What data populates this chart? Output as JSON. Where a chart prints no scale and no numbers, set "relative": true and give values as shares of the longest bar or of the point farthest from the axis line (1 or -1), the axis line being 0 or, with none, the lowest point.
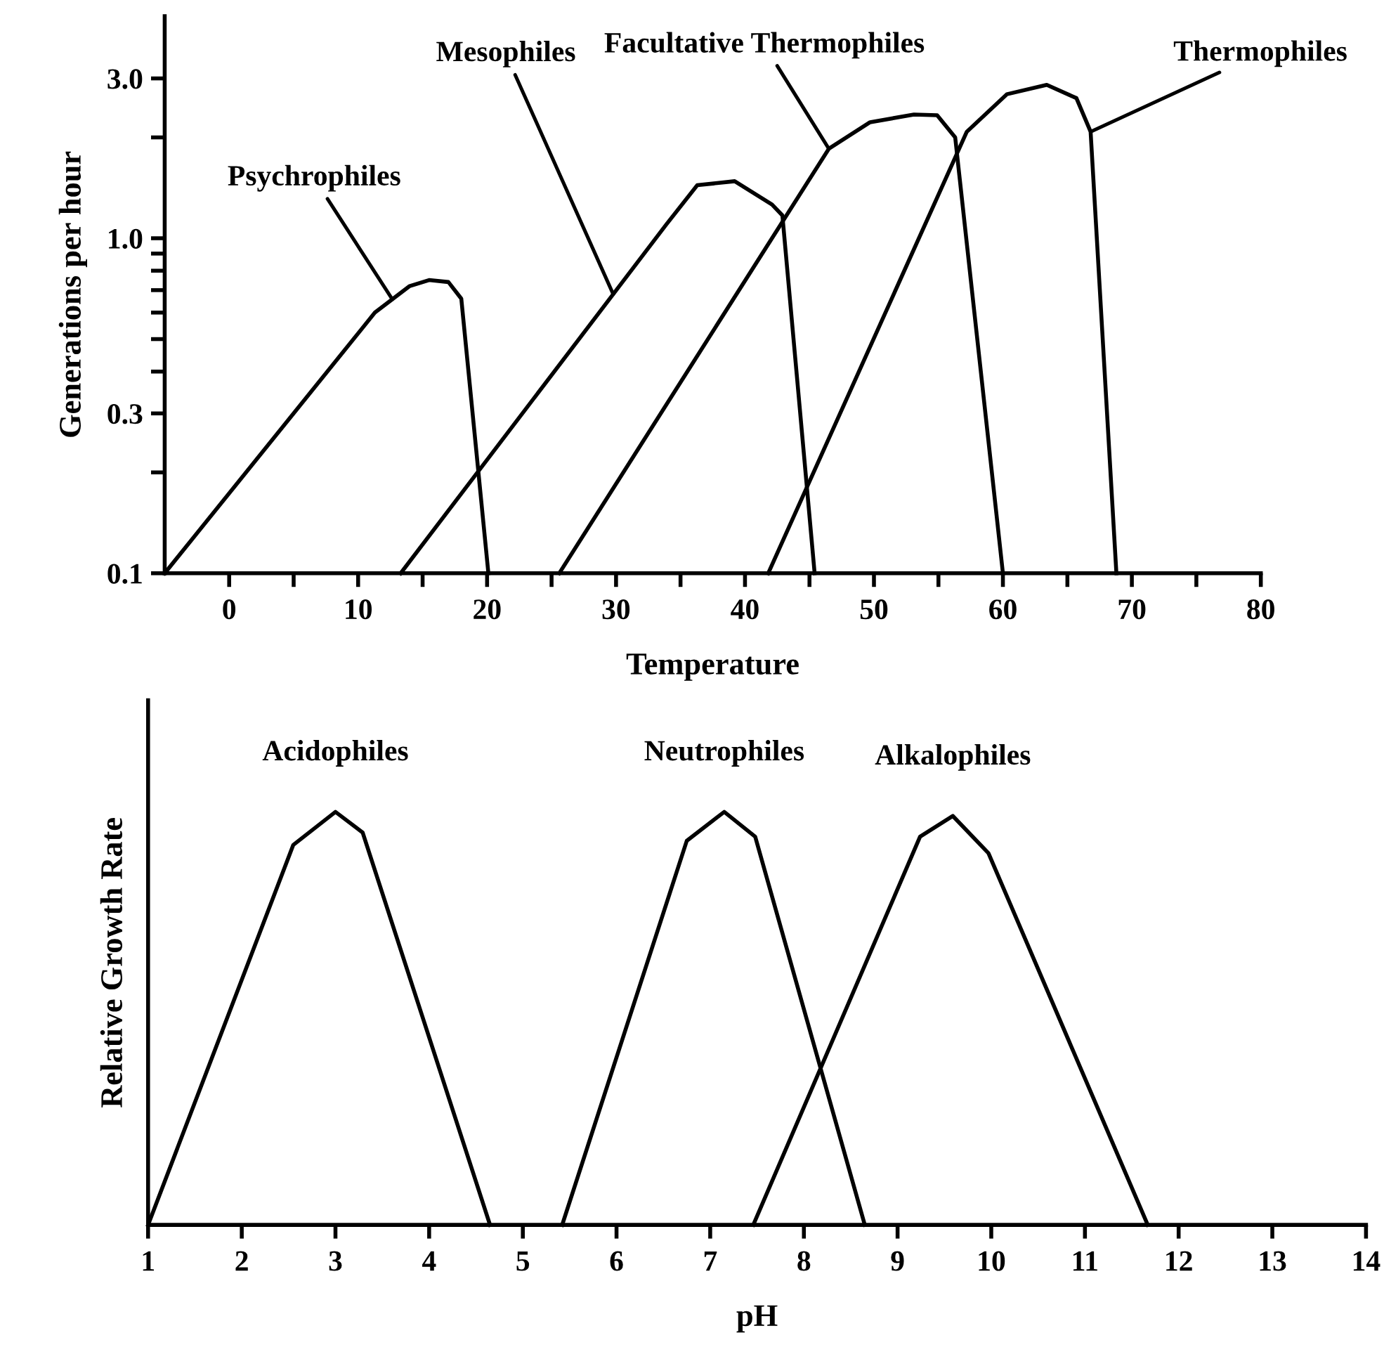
{
  "chart_data": [
    {
      "type": "line",
      "xlabel": "Temperature",
      "ylabel": "Generations per hour",
      "log": "y",
      "grid": false,
      "marker": "none",
      "line_style": "solid",
      "xlim": [
        -5,
        80
      ],
      "ylim": [
        0.1,
        4.6
      ],
      "xticks": [
        0,
        {
          "value": 5,
          "label": null
        },
        10,
        {
          "value": 15,
          "label": null
        },
        20,
        {
          "value": 25,
          "label": null
        },
        30,
        {
          "value": 35,
          "label": null
        },
        40,
        {
          "value": 45,
          "label": null
        },
        50,
        {
          "value": 55,
          "label": null
        },
        60,
        {
          "value": 65,
          "label": null
        },
        70,
        {
          "value": 75,
          "label": null
        },
        80
      ],
      "yticks": [
        0.1,
        {
          "value": 0.2,
          "label": null
        },
        0.3,
        {
          "value": 0.4,
          "label": null
        },
        {
          "value": 0.5,
          "label": null
        },
        {
          "value": 0.6,
          "label": null
        },
        {
          "value": 0.7,
          "label": null
        },
        {
          "value": 0.8,
          "label": null
        },
        {
          "value": 0.9,
          "label": null
        },
        {
          "value": 1,
          "label": "1.0"
        },
        {
          "value": 2,
          "label": null
        },
        {
          "value": 3,
          "label": "3.0"
        }
      ],
      "series": [
        {
          "name": "Psychrophiles",
          "color": "#000000",
          "x": [
            -5,
            11.3,
            14,
            15.5,
            17,
            18,
            20.1
          ],
          "values": [
            0.1,
            0.6,
            0.72,
            0.75,
            0.74,
            0.66,
            0.1
          ]
        },
        {
          "name": "Mesophiles",
          "color": "#000000",
          "x": [
            13.3,
            33.9,
            36.3,
            39.2,
            42.1,
            42.9,
            45.4
          ],
          "values": [
            0.1,
            1.1,
            1.44,
            1.48,
            1.26,
            1.17,
            0.1
          ]
        },
        {
          "name": "Facultative Thermophiles",
          "color": "#000000",
          "x": [
            25.6,
            46.5,
            49.7,
            53.1,
            54.9,
            56.3,
            60.0
          ],
          "values": [
            0.1,
            1.85,
            2.22,
            2.34,
            2.33,
            2.0,
            0.1
          ]
        },
        {
          "name": "Thermophiles",
          "color": "#000000",
          "x": [
            41.8,
            57.2,
            60.3,
            63.4,
            65.7,
            66.8,
            68.8
          ],
          "values": [
            0.1,
            2.08,
            2.69,
            2.87,
            2.62,
            2.08,
            0.1
          ]
        }
      ]
    },
    {
      "type": "line",
      "xlabel": "pH",
      "ylabel": "Relative Growth Rate",
      "relative": true,
      "grid": false,
      "marker": "none",
      "line_style": "solid",
      "tick_labels": "x",
      "xlim": [
        1,
        14
      ],
      "xticks": [
        1,
        2,
        3,
        4,
        5,
        6,
        7,
        8,
        9,
        10,
        11,
        12,
        13,
        14
      ],
      "series": [
        {
          "name": "Acidophiles",
          "color": "#000000",
          "x": [
            1.0,
            2.55,
            3.0,
            3.29,
            4.65
          ],
          "values": [
            0,
            0.92,
            1,
            0.95,
            0
          ]
        },
        {
          "name": "Neutrophiles",
          "color": "#000000",
          "x": [
            5.42,
            6.75,
            7.15,
            7.48,
            8.65
          ],
          "values": [
            0,
            0.93,
            1,
            0.94,
            0
          ]
        },
        {
          "name": "Alkalophiles",
          "color": "#000000",
          "x": [
            7.46,
            9.24,
            9.59,
            9.97,
            11.67
          ],
          "values": [
            0,
            0.94,
            0.99,
            0.9,
            0
          ]
        }
      ]
    }
  ]
}
